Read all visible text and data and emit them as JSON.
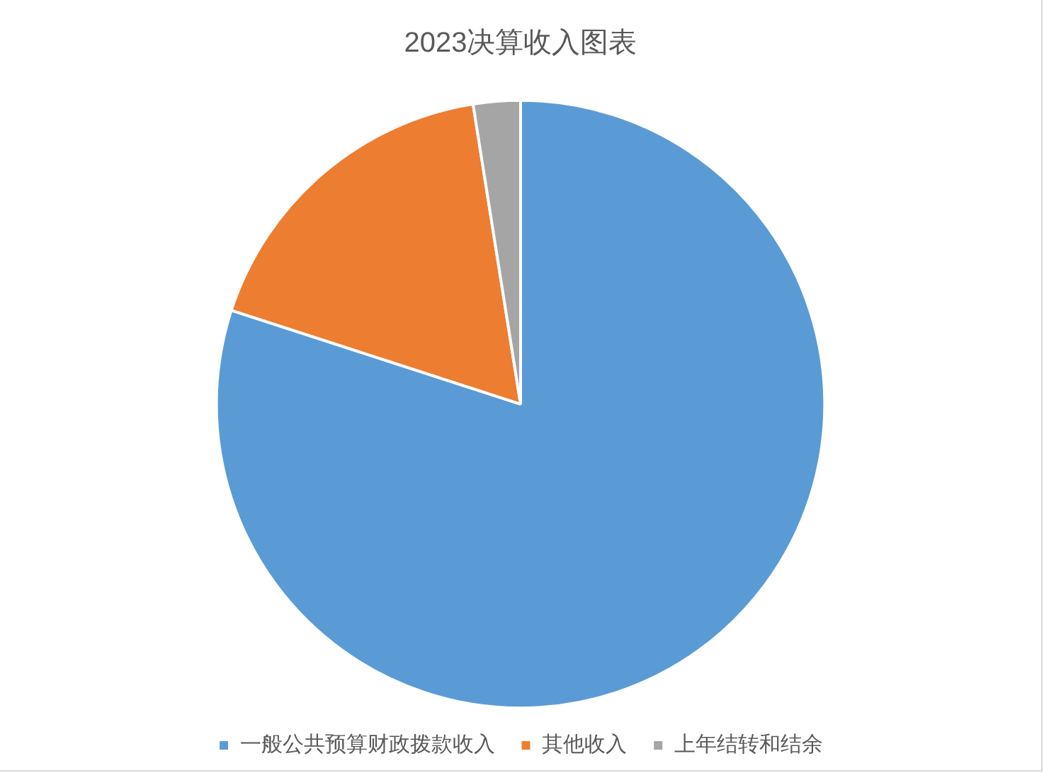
{
  "chart_data": {
    "type": "pie",
    "title": "2023决算收入图表",
    "categories": [
      "一般公共预算财政拨款收入",
      "其他收入",
      "上年结转和结余"
    ],
    "values": [
      80,
      17.5,
      2.5
    ],
    "colors": [
      "#5b9bd5",
      "#ed7d31",
      "#a5a5a5"
    ],
    "legend": "bottom"
  }
}
